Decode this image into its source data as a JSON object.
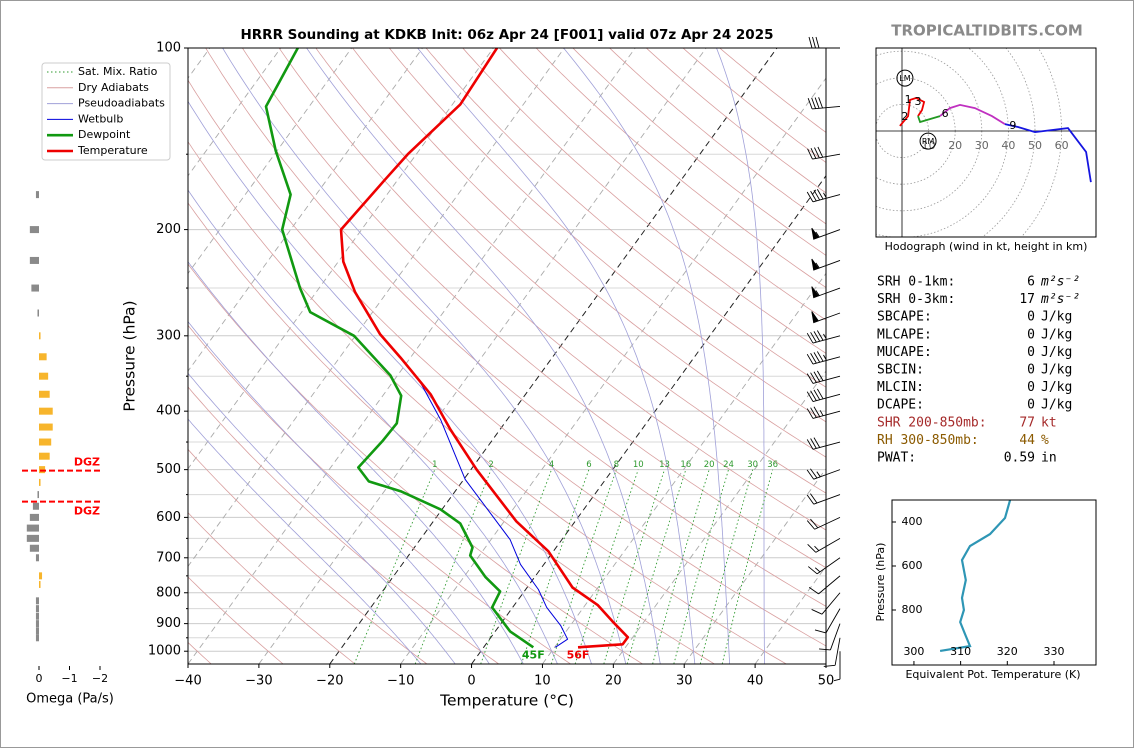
{
  "chart_data": [
    {
      "type": "skewt",
      "title": "HRRR Sounding at KDKB Init: 06z Apr 24 [F001] valid 07z Apr 24 2025",
      "xlabel": "Temperature (°C)",
      "ylabel": "Pressure (hPa)",
      "xlim": [
        -40,
        50
      ],
      "ylim": [
        1050,
        100
      ],
      "ylog": true,
      "xticks": [
        {
          "value": -40,
          "label": "−40"
        },
        {
          "value": -30,
          "label": "−30"
        },
        {
          "value": -20,
          "label": "−20"
        },
        {
          "value": -10,
          "label": "−10"
        },
        0,
        10,
        20,
        30,
        40,
        50
      ],
      "yticks": [
        100,
        200,
        300,
        400,
        500,
        600,
        700,
        800,
        900,
        1000
      ],
      "minor_yticks": [
        150,
        250,
        350,
        450,
        550,
        650,
        750,
        850,
        950
      ],
      "isotherms": [
        -120,
        -110,
        -100,
        -90,
        -80,
        -70,
        -60,
        -50,
        -40,
        -30,
        -20,
        -10,
        0,
        10,
        20,
        30,
        40,
        50
      ],
      "highlight_isotherms": [
        -20,
        0
      ],
      "dry_adiabats": {
        "name": "Dry Adiabats",
        "color": "#d9a0a0",
        "values": [
          -40,
          -30,
          -20,
          -10,
          0,
          10,
          20,
          30,
          40,
          50,
          60,
          70,
          80,
          90,
          100,
          110,
          120,
          130,
          140,
          150,
          160,
          170,
          180,
          190,
          200
        ]
      },
      "moist_adiabats": {
        "name": "Pseudoadiabats",
        "color": "#a0a0d8",
        "values": [
          -10,
          -5,
          0,
          5,
          10,
          15,
          20,
          25,
          30,
          35,
          40
        ]
      },
      "mixing_ratio": {
        "name": "Sat. Mix. Ratio",
        "color": "#2f9a2f",
        "values": [
          1,
          2,
          4,
          6,
          8,
          10,
          13,
          16,
          20,
          24,
          30,
          36
        ]
      },
      "series": [
        {
          "name": "Temperature",
          "color": "#ee0000",
          "pressure": [
            985,
            974,
            948,
            892,
            839,
            784,
            683,
            609,
            500,
            429,
            375,
            326,
            298,
            254,
            226,
            200,
            165,
            150,
            124,
            100
          ],
          "values": [
            13.3,
            19.3,
            19.3,
            15.5,
            11.8,
            6.4,
            -0.7,
            -8.3,
            -19.2,
            -27.0,
            -33.4,
            -41.4,
            -46.7,
            -54.5,
            -59.3,
            -62.9,
            -61.8,
            -61.2,
            -58.9,
            -59.5
          ],
          "surface_label": "56F"
        },
        {
          "name": "Dewpoint",
          "color": "#119911",
          "pressure": [
            985,
            927,
            846,
            796,
            754,
            694,
            673,
            614,
            582,
            543,
            523,
            496,
            449,
            419,
            377,
            349,
            300,
            274,
            250,
            200,
            175,
            148,
            125,
            100
          ],
          "values": [
            7.0,
            2.1,
            -2.9,
            -3.4,
            -6.9,
            -11.3,
            -11.8,
            -16.0,
            -20.2,
            -27.7,
            -33.2,
            -36.1,
            -35.4,
            -35.2,
            -37.4,
            -41.0,
            -50.2,
            -58.8,
            -62.7,
            -71.2,
            -73.6,
            -80.2,
            -86.1,
            -87.6
          ],
          "surface_label": "45F"
        },
        {
          "name": "Wetbulb",
          "color": "#0000dd",
          "pressure": [
            985,
            955,
            906,
            846,
            790,
            718,
            653,
            586,
            519,
            413,
            352
          ],
          "values": [
            10.1,
            11.0,
            8.6,
            4.8,
            1.8,
            -3.3,
            -7.3,
            -13.2,
            -19.8,
            -29.4,
            -36.9
          ]
        }
      ],
      "wind_barbs": {
        "pressure": [
          100,
          125,
          150,
          175,
          200,
          225,
          250,
          275,
          300,
          325,
          350,
          375,
          400,
          450,
          500,
          550,
          600,
          650,
          700,
          750,
          800,
          850,
          900,
          950,
          1000
        ],
        "speed": [
          30,
          40,
          40,
          45,
          55,
          55,
          55,
          50,
          45,
          45,
          40,
          40,
          35,
          30,
          25,
          20,
          20,
          15,
          15,
          10,
          10,
          10,
          10,
          10,
          5
        ],
        "direction": [
          270,
          265,
          260,
          255,
          250,
          250,
          250,
          250,
          255,
          255,
          255,
          255,
          255,
          255,
          250,
          250,
          245,
          240,
          235,
          230,
          220,
          210,
          200,
          190,
          180
        ]
      }
    },
    {
      "type": "barh",
      "xlabel": "Omega (Pa/s)",
      "xlim": [
        0.5,
        -2
      ],
      "xticks": [
        0,
        {
          "value": -1,
          "label": "−1"
        },
        {
          "value": -2,
          "label": "−2"
        }
      ],
      "ylim": [
        1050,
        100
      ],
      "ylog": true,
      "pressure": [
        175,
        200,
        225,
        250,
        275,
        300,
        325,
        350,
        375,
        400,
        425,
        450,
        475,
        500,
        525,
        550,
        575,
        600,
        625,
        650,
        675,
        700,
        750,
        775,
        825,
        850,
        875,
        900,
        925,
        950
      ],
      "values": [
        0.1,
        0.3,
        0.3,
        0.25,
        0.05,
        -0.05,
        -0.25,
        -0.3,
        -0.35,
        -0.45,
        -0.45,
        -0.4,
        -0.35,
        -0.2,
        -0.05,
        0.05,
        0.2,
        0.3,
        0.4,
        0.4,
        0.3,
        0.1,
        -0.1,
        -0.05,
        0.1,
        0.1,
        0.1,
        0.1,
        0.1,
        0.1
      ],
      "down_color": "#8a8a8a",
      "up_color": "#f7b52c",
      "dgz": {
        "label": "DGZ",
        "pressure": [
          502,
          565
        ],
        "color": "#ff0000"
      }
    },
    {
      "type": "hodograph",
      "title": "Hodograph (wind in kt, height in km)",
      "rings": [
        10,
        20,
        30,
        40,
        50,
        60
      ],
      "series": [
        {
          "color": "#ee0000",
          "u": [
            -0.8,
            2.3,
            3.0,
            5.3,
            8.3,
            7.5,
            6.0
          ],
          "v": [
            1.9,
            5.6,
            11.7,
            12.4,
            10.9,
            7.9,
            5.6
          ]
        },
        {
          "color": "#229922",
          "u": [
            6.0,
            6.8,
            14.3
          ],
          "v": [
            5.6,
            3.4,
            5.6
          ]
        },
        {
          "color": "#c030c0",
          "u": [
            14.3,
            18.0,
            21.8,
            27.4,
            33.8,
            38.7
          ],
          "v": [
            5.6,
            8.6,
            9.8,
            8.6,
            5.6,
            2.6
          ]
        },
        {
          "color": "#1515e0",
          "u": [
            38.7,
            43.6,
            50.0,
            62.4,
            69.2,
            71.0
          ],
          "v": [
            2.6,
            1.5,
            -0.4,
            1.1,
            -7.9,
            -19.2
          ]
        }
      ],
      "height_labels": {
        "values": [
          1,
          3,
          2,
          6,
          9
        ],
        "u": [
          2.3,
          6.0,
          1.1,
          16.2,
          41.7
        ],
        "v": [
          11.7,
          10.9,
          5.3,
          6.4,
          1.9
        ]
      },
      "storm_motion": [
        {
          "label": "LM",
          "u": 1.1,
          "v": 19.9
        },
        {
          "label": "RM",
          "u": 9.8,
          "v": -3.8
        }
      ]
    },
    {
      "type": "line",
      "xlabel": "Equivalent Pot. Temperature (K)",
      "ylabel": "Pressure (hPa)",
      "xlim": [
        295.3,
        339
      ],
      "ylim": [
        1050,
        300
      ],
      "xticks": [
        300,
        310,
        320,
        330
      ],
      "yticks": [
        400,
        600,
        800
      ],
      "series": [
        {
          "color": "#2e96b5",
          "pressure": [
            986,
            964,
            918,
            855,
            800,
            745,
            664,
            573,
            509,
            455,
            382,
            300
          ],
          "values": [
            305.6,
            312.0,
            311.1,
            309.9,
            310.7,
            310.3,
            311.1,
            310.3,
            312.0,
            316.3,
            319.5,
            320.6
          ]
        }
      ]
    }
  ],
  "site": "TROPICALTIDBITS.COM",
  "indices": [
    {
      "label": "SRH 0-1km:",
      "value": 6,
      "unit": "m²s⁻²"
    },
    {
      "label": "SRH 0-3km:",
      "value": 17,
      "unit": "m²s⁻²"
    },
    {
      "label": "SBCAPE:",
      "value": 0,
      "unit": "J/kg"
    },
    {
      "label": "MLCAPE:",
      "value": 0,
      "unit": "J/kg"
    },
    {
      "label": "MUCAPE:",
      "value": 0,
      "unit": "J/kg"
    },
    {
      "label": "SBCIN:",
      "value": 0,
      "unit": "J/kg"
    },
    {
      "label": "MLCIN:",
      "value": 0,
      "unit": "J/kg"
    },
    {
      "label": "DCAPE:",
      "value": 0,
      "unit": "J/kg"
    },
    {
      "label": "SHR 200-850mb:",
      "value": 77,
      "unit": "kt",
      "color": "#a52a2a"
    },
    {
      "label": "RH 300-850mb:",
      "value": 44,
      "unit": "%",
      "color": "#8b5a00"
    },
    {
      "label": "PWAT:",
      "value": 0.59,
      "unit": "in"
    }
  ]
}
